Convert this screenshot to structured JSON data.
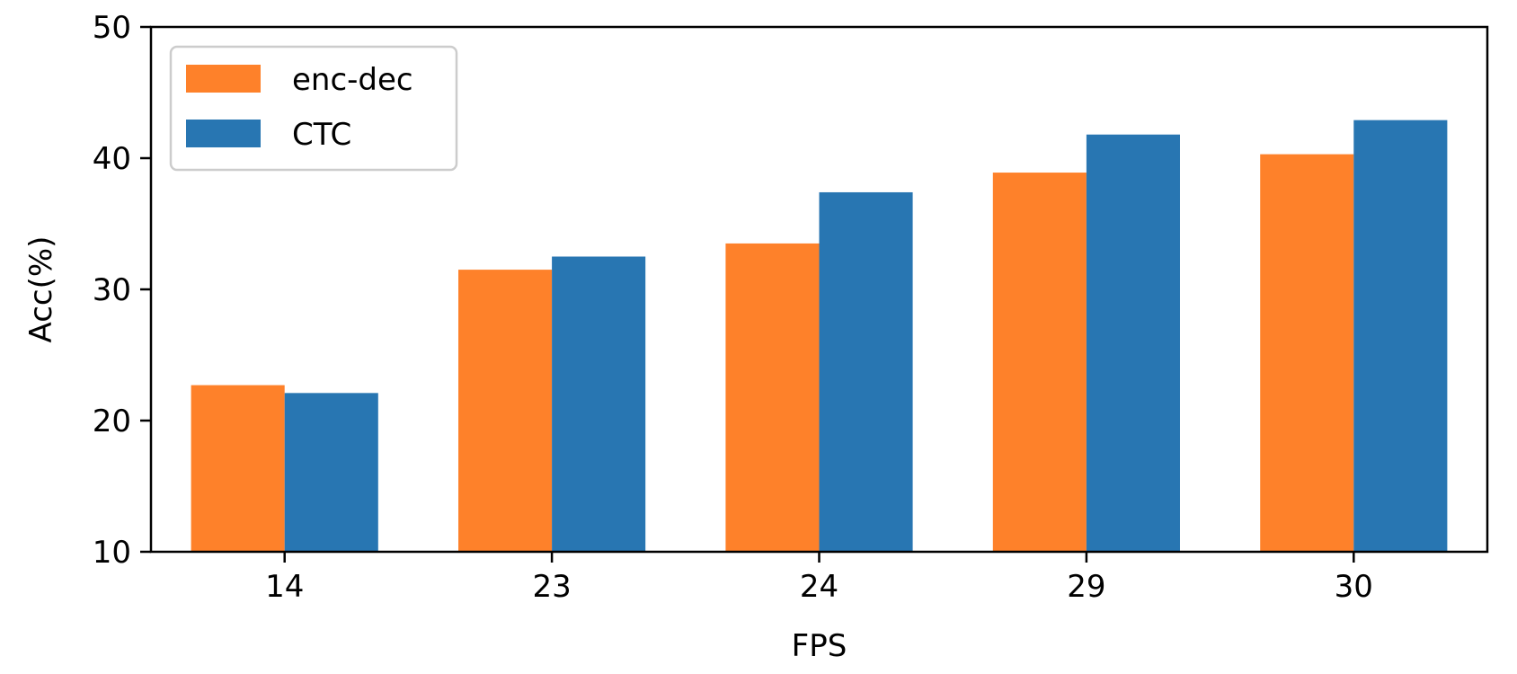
{
  "chart_data": {
    "type": "bar",
    "categories": [
      "14",
      "23",
      "24",
      "29",
      "30"
    ],
    "series": [
      {
        "name": "enc-dec",
        "color": "#fe812a",
        "values": [
          22.7,
          31.5,
          33.5,
          38.9,
          40.3
        ]
      },
      {
        "name": "CTC",
        "color": "#2876b2",
        "values": [
          22.1,
          32.5,
          37.4,
          41.8,
          42.9
        ]
      }
    ],
    "xlabel": "FPS",
    "ylabel": "Acc(%)",
    "ylim": [
      10,
      50
    ],
    "yticks": [
      10,
      20,
      30,
      40,
      50
    ],
    "grid": false,
    "legend_position": "upper-left"
  }
}
